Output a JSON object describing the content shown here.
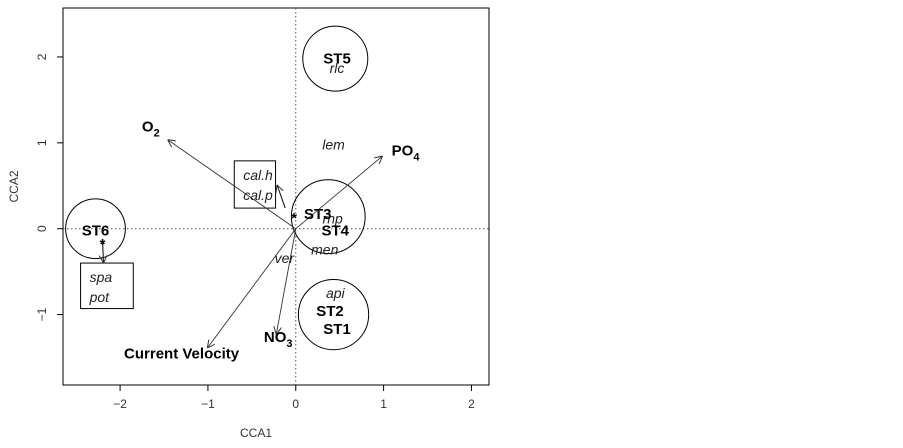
{
  "chart_data": {
    "type": "scatter",
    "title": "",
    "xlabel": "CCA1",
    "ylabel": "CCA2",
    "xlim": [
      -2.65,
      2.2
    ],
    "ylim": [
      -1.82,
      2.57
    ],
    "x_ticks": [
      -2,
      -1,
      0,
      1,
      2
    ],
    "y_ticks": [
      -1,
      0,
      1,
      2
    ],
    "x_tick_labels": [
      "−2",
      "−1",
      "0",
      "1",
      "2"
    ],
    "y_tick_labels": [
      "−1",
      "0",
      "1",
      "2"
    ],
    "reference_lines": "dotted lines at x = 0 and y = 0",
    "env_vectors": [
      {
        "name": "O",
        "sub": "2",
        "x": -1.45,
        "y": 1.03,
        "label_x": -1.65,
        "label_y": 1.13
      },
      {
        "name": "PO",
        "sub": "4",
        "x": 0.98,
        "y": 0.84,
        "label_x": 1.25,
        "label_y": 0.85
      },
      {
        "name": "NO",
        "sub": "3",
        "x": -0.22,
        "y": -1.22,
        "label_x": -0.2,
        "label_y": -1.32
      },
      {
        "name": "Current Velocity",
        "sub": "",
        "x": -1.0,
        "y": -1.38,
        "label_x": -1.3,
        "label_y": -1.51
      }
    ],
    "sites": [
      {
        "label": "ST5",
        "x": 0.47,
        "y": 1.98
      },
      {
        "label": "ST3",
        "x": 0.25,
        "y": 0.17
      },
      {
        "label": "ST4",
        "x": 0.45,
        "y": -0.02
      },
      {
        "label": "ST6",
        "x": -2.28,
        "y": -0.02
      },
      {
        "label": "ST2",
        "x": 0.39,
        "y": -0.96
      },
      {
        "label": "ST1",
        "x": 0.47,
        "y": -1.17
      }
    ],
    "site_groups": [
      {
        "x": 0.45,
        "y": 1.98,
        "r": 0.37
      },
      {
        "x": 0.37,
        "y": 0.14,
        "r": 0.42
      },
      {
        "x": -2.28,
        "y": 0.0,
        "r": 0.34
      },
      {
        "x": 0.43,
        "y": -1.0,
        "r": 0.4
      }
    ],
    "species": [
      {
        "label": "rlc",
        "x": 0.47,
        "y": 1.87
      },
      {
        "label": "lem",
        "x": 0.43,
        "y": 0.98
      },
      {
        "label": "rhp",
        "x": 0.42,
        "y": 0.12
      },
      {
        "label": "men",
        "x": 0.33,
        "y": -0.24
      },
      {
        "label": "ver",
        "x": -0.13,
        "y": -0.34
      },
      {
        "label": "api",
        "x": 0.45,
        "y": -0.75
      }
    ],
    "species_boxes": [
      {
        "labels": [
          "cal.h",
          "cal.p"
        ],
        "x": -0.7,
        "y": 0.79,
        "w": 0.47,
        "h": 0.55,
        "arrow": {
          "x1": -0.12,
          "y1": 0.24,
          "x2": -0.21,
          "y2": 0.5
        }
      },
      {
        "labels": [
          "spa",
          "pot"
        ],
        "x": -2.45,
        "y": -0.4,
        "w": 0.6,
        "h": 0.53,
        "arrow": {
          "x1": -2.2,
          "y1": -0.12,
          "x2": -2.19,
          "y2": -0.39
        }
      }
    ],
    "site_markers": [
      {
        "x": -0.02,
        "y": 0.18
      },
      {
        "x": -2.2,
        "y": -0.12
      }
    ]
  },
  "colors": {
    "axis": "#000000",
    "frame": "#000000",
    "text": "#000000",
    "ref_line": "#555555"
  }
}
